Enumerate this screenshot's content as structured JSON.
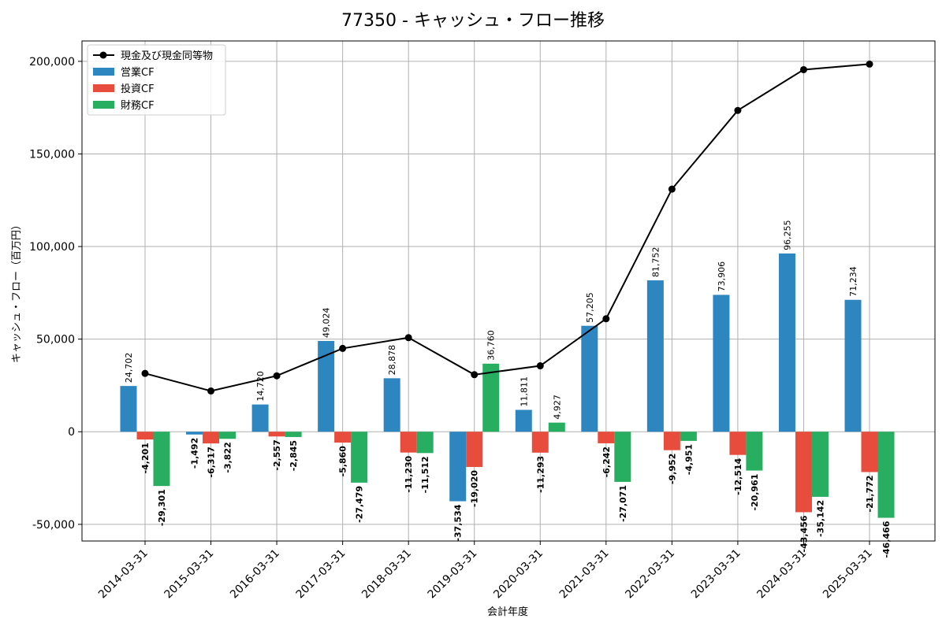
{
  "chart_data": {
    "type": "bar",
    "title": "77350 - キャッシュ・フロー推移",
    "xlabel": "会計年度",
    "ylabel": "キャッシュ・フロー（百万円）",
    "ylim": [
      -59000,
      211000
    ],
    "yticks": [
      -50000,
      0,
      50000,
      100000,
      150000,
      200000
    ],
    "ytick_labels": [
      "-50,000",
      "0",
      "50,000",
      "100,000",
      "150,000",
      "200,000"
    ],
    "grid": true,
    "legend_position": "top-left",
    "categories": [
      "2014-03-31",
      "2015-03-31",
      "2016-03-31",
      "2017-03-31",
      "2018-03-31",
      "2019-03-31",
      "2020-03-31",
      "2021-03-31",
      "2022-03-31",
      "2023-03-31",
      "2024-03-31",
      "2025-03-31"
    ],
    "series": [
      {
        "name": "営業CF",
        "type": "bar",
        "color": "#2e86c1",
        "values": [
          24702,
          -1492,
          14720,
          49024,
          28878,
          -37534,
          11811,
          57205,
          81752,
          73906,
          96255,
          71234
        ],
        "labels": [
          "24,702",
          "-1,492",
          "14,720",
          "49,024",
          "28,878",
          "-37,534",
          "11,811",
          "57,205",
          "81,752",
          "73,906",
          "96,255",
          "71,234"
        ]
      },
      {
        "name": "投資CF",
        "type": "bar",
        "color": "#e74c3c",
        "values": [
          -4201,
          -6317,
          -2557,
          -5860,
          -11230,
          -19020,
          -11293,
          -6242,
          -9952,
          -12514,
          -43456,
          -21772
        ],
        "labels": [
          "-4,201",
          "-6,317",
          "-2,557",
          "-5,860",
          "-11,230",
          "-19,020",
          "-11,293",
          "-6,242",
          "-9,952",
          "-12,514",
          "-43,456",
          "-21,772"
        ]
      },
      {
        "name": "財務CF",
        "type": "bar",
        "color": "#27ae60",
        "values": [
          -29301,
          -3822,
          -2845,
          -27479,
          -11512,
          36760,
          4927,
          -27071,
          -4951,
          -20961,
          -35142,
          -46466
        ],
        "labels": [
          "-29,301",
          "-3,822",
          "-2,845",
          "-27,479",
          "-11,512",
          "36,760",
          "4,927",
          "-27,071",
          "-4,951",
          "-20,961",
          "-35,142",
          "-46,466"
        ]
      },
      {
        "name": "現金及び現金同等物",
        "type": "line",
        "color": "#000000",
        "values": [
          31500,
          22000,
          30200,
          45000,
          50800,
          30800,
          35600,
          61000,
          131000,
          173500,
          195500,
          198500
        ]
      }
    ]
  }
}
